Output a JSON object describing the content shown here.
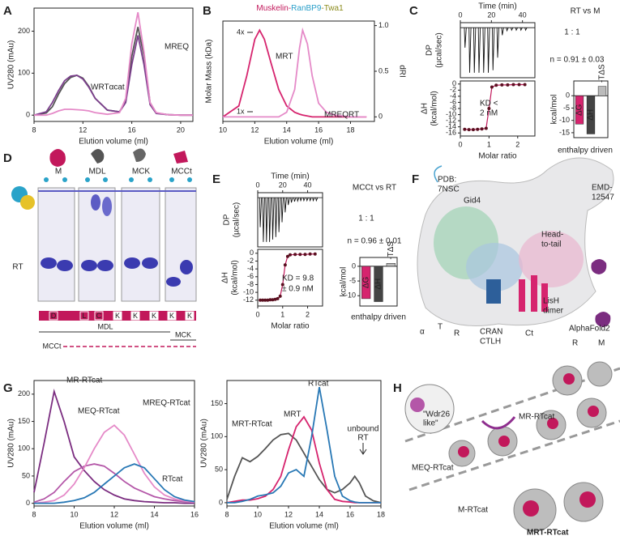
{
  "panels": [
    "A",
    "B",
    "C",
    "D",
    "E",
    "F",
    "G",
    "H"
  ],
  "chart_data": [
    {
      "type": "line",
      "xlabel": "Elution volume (ml)",
      "ylabel": "UV280 (mAu)",
      "xlim": [
        8,
        21
      ],
      "ylim": [
        -15,
        255
      ],
      "xticks": [
        8,
        12,
        16,
        20
      ],
      "yticks": [
        0,
        100,
        200
      ],
      "x": [
        8,
        9,
        9.5,
        10,
        10.5,
        11,
        11.5,
        12,
        12.5,
        13,
        14,
        15,
        15.5,
        16,
        16.5,
        17,
        17.5,
        18,
        19,
        20,
        21
      ],
      "series": [
        {
          "color": "#555555",
          "values": [
            0,
            5,
            20,
            50,
            75,
            90,
            95,
            88,
            68,
            40,
            12,
            8,
            35,
            140,
            210,
            140,
            30,
            5,
            1,
            0,
            0
          ]
        },
        {
          "name": "WRTαcat",
          "color": "#7b3f8c",
          "values": [
            0,
            8,
            30,
            58,
            82,
            93,
            95,
            86,
            66,
            40,
            12,
            8,
            30,
            120,
            190,
            120,
            25,
            4,
            1,
            0,
            0
          ]
        },
        {
          "name": "MREQ",
          "color": "#e58ac8",
          "values": [
            0,
            0,
            4,
            10,
            14,
            14,
            13,
            12,
            10,
            6,
            2,
            6,
            40,
            170,
            245,
            150,
            30,
            6,
            1,
            0,
            0
          ]
        }
      ]
    },
    {
      "type": "line",
      "title_parts": [
        "Muskelin-",
        "RanBP9",
        "-Twa1"
      ],
      "title_colors": [
        "#c2185b",
        "#2a9fc9",
        "#8a8a1a"
      ],
      "xlabel": "Elution volume (ml)",
      "ylabel": "Molar Mass (kDa)",
      "y2label": "dRI",
      "mass_labels": [
        "4x",
        "1x"
      ],
      "xlim": [
        10,
        19.5
      ],
      "xticks": [
        10,
        12,
        14,
        16,
        18
      ],
      "y2lim": [
        -0.05,
        1.05
      ],
      "y2ticks": [
        0,
        0.5,
        {
          "value": 1,
          "label": "1.0"
        }
      ],
      "x": [
        10,
        11,
        11.5,
        12,
        12.3,
        12.6,
        13,
        13.5,
        14,
        14.5,
        14.8,
        15,
        15.3,
        15.6,
        16,
        16.5,
        17,
        18,
        19
      ],
      "series": [
        {
          "name": "MRT",
          "color": "#d6246e",
          "axis": "y2",
          "values": [
            0,
            0.12,
            0.45,
            0.85,
            0.95,
            0.85,
            0.6,
            0.3,
            0.12,
            0.05,
            0.03,
            0.02,
            0.01,
            0,
            0,
            0,
            0,
            0,
            0
          ]
        },
        {
          "name": "MREQRT",
          "color": "#e58ac8",
          "axis": "y2",
          "values": [
            0,
            0,
            0,
            0,
            0,
            0,
            0,
            0,
            0.05,
            0.3,
            0.75,
            0.95,
            0.8,
            0.45,
            0.15,
            0.05,
            0.02,
            0,
            0
          ]
        }
      ]
    },
    {
      "type": "spikes",
      "xlabel": "Time (min)",
      "ylabel": [
        "DP",
        "(µcal/sec)"
      ],
      "xlim": [
        0,
        48
      ],
      "xticks": [
        0,
        20,
        40
      ],
      "ylim": [
        -10,
        1
      ],
      "color": "#111111",
      "x": [
        3,
        6,
        9,
        12,
        15,
        18,
        21,
        24,
        27,
        30,
        33,
        36,
        39,
        42
      ],
      "values": [
        -4,
        -9,
        -9,
        -9,
        -9,
        -9,
        -8.5,
        -6,
        -1.5,
        -0.6,
        -0.5,
        -0.5,
        -0.5,
        -0.5
      ]
    },
    {
      "type": "line",
      "markers": true,
      "xlabel": "Molar ratio",
      "ylabel": [
        "ΔH",
        "(kcal/mol)"
      ],
      "xlim": [
        0,
        2.6
      ],
      "xticks": [
        0,
        1,
        2
      ],
      "ylim": [
        -17,
        1
      ],
      "yticks": [
        0,
        -2,
        -4,
        -6,
        -8,
        -10,
        -12,
        -14,
        -16
      ],
      "annotations": [
        "KD <",
        "2 nM"
      ],
      "x": [
        0.15,
        0.3,
        0.45,
        0.6,
        0.75,
        0.9,
        1.0,
        1.1,
        1.25,
        1.45,
        1.65,
        1.85,
        2.05,
        2.25
      ],
      "series": [
        {
          "color": "#c2185b",
          "values": [
            -14.8,
            -14.9,
            -14.9,
            -14.8,
            -14.7,
            -14.5,
            -8,
            -1,
            -0.4,
            -0.3,
            -0.3,
            -0.2,
            -0.2,
            -0.2
          ]
        }
      ]
    },
    {
      "type": "bar",
      "ylabel": "kcal/mol",
      "ylim": [
        -17,
        6
      ],
      "yticks": [
        0,
        -5,
        -10,
        -15
      ],
      "categories": [
        "ΔG",
        "ΔH",
        "-TΔS"
      ],
      "values": [
        -11.5,
        -15.5,
        3.8
      ],
      "colors": [
        "#d6246e",
        "#444444",
        "#bbbbbb"
      ],
      "annotations": [
        "RT vs M",
        "1 : 1",
        "n = 0.91 ± 0.03",
        "enthalpy driven"
      ]
    },
    {
      "type": "spikes",
      "xlabel": "Time (min)",
      "ylabel": [
        "DP",
        "(µcal/sec)"
      ],
      "xlim": [
        0,
        52
      ],
      "xticks": [
        0,
        20,
        40
      ],
      "ylim": [
        -10,
        1
      ],
      "color": "#111111",
      "x": [
        2,
        4.5,
        7,
        9.5,
        12,
        14.5,
        17,
        19.5,
        22,
        24.5,
        27,
        29.5,
        32,
        34.5,
        37,
        39.5,
        42,
        44.5,
        47
      ],
      "values": [
        -6,
        -9,
        -9,
        -9,
        -8.5,
        -8,
        -7,
        -5,
        -3,
        -1.5,
        -1,
        -0.8,
        -0.7,
        -0.6,
        -0.6,
        -0.6,
        -0.6,
        -0.6,
        -0.6
      ]
    },
    {
      "type": "line",
      "markers": true,
      "xlabel": "Molar ratio",
      "ylabel": [
        "ΔH",
        "(kcal/mol)"
      ],
      "xlim": [
        0,
        2.6
      ],
      "xticks": [
        0,
        1,
        2
      ],
      "ylim": [
        -13.5,
        1
      ],
      "yticks": [
        0,
        -2,
        -4,
        -6,
        -8,
        -10,
        -12
      ],
      "annotations": [
        "KD = 9.8",
        "± 0.9 nM"
      ],
      "x": [
        0.1,
        0.2,
        0.3,
        0.4,
        0.5,
        0.6,
        0.7,
        0.8,
        0.9,
        1.0,
        1.1,
        1.2,
        1.3,
        1.5,
        1.7,
        1.9,
        2.1,
        2.3
      ],
      "series": [
        {
          "color": "#c2185b",
          "values": [
            -12,
            -12,
            -12,
            -12,
            -11.9,
            -11.9,
            -11.8,
            -11.6,
            -11,
            -8,
            -3,
            -0.8,
            -0.4,
            -0.3,
            -0.3,
            -0.3,
            -0.2,
            -0.2
          ]
        }
      ]
    },
    {
      "type": "bar",
      "ylabel": "kcal/mol",
      "ylim": [
        -13.5,
        3
      ],
      "yticks": [
        0,
        -5,
        -10
      ],
      "categories": [
        "ΔG",
        "ΔH",
        "-TΔS"
      ],
      "values": [
        -11,
        -12,
        1
      ],
      "colors": [
        "#d6246e",
        "#444444",
        "#bbbbbb"
      ],
      "annotations": [
        "MCCt vs RT",
        "1 : 1",
        "n = 0.96 ± 0.01",
        "enthalpy driven"
      ]
    },
    {
      "type": "line",
      "xlabel": "Elution volume (ml)",
      "ylabel": "UV280 (mAu)",
      "xlim": [
        8,
        16
      ],
      "xticks": [
        8,
        10,
        12,
        14,
        16
      ],
      "ylim": [
        -5,
        225
      ],
      "yticks": [
        0,
        50,
        100,
        150,
        200
      ],
      "x": [
        8,
        8.5,
        9,
        9.5,
        10,
        10.5,
        11,
        11.5,
        12,
        12.5,
        13,
        13.5,
        14,
        14.5,
        15,
        15.5,
        16
      ],
      "series": [
        {
          "name": "MR-RTcat",
          "color": "#7b2d80",
          "values": [
            20,
            110,
            205,
            150,
            85,
            60,
            40,
            25,
            15,
            8,
            5,
            3,
            2,
            1,
            1,
            0,
            0
          ]
        },
        {
          "name": "MEQ-RTcat",
          "color": "#b457a8",
          "values": [
            2,
            8,
            20,
            40,
            58,
            68,
            72,
            68,
            55,
            40,
            28,
            20,
            12,
            8,
            5,
            3,
            2
          ]
        },
        {
          "name": "MREQ-RTcat",
          "color": "#e58ac8",
          "values": [
            0,
            2,
            5,
            15,
            35,
            65,
            100,
            130,
            143,
            125,
            90,
            55,
            30,
            15,
            8,
            4,
            2
          ]
        },
        {
          "name": "RTcat",
          "color": "#2878b5",
          "values": [
            0,
            0,
            0,
            2,
            5,
            10,
            20,
            35,
            50,
            65,
            72,
            65,
            45,
            25,
            12,
            6,
            3
          ]
        }
      ]
    },
    {
      "type": "line",
      "xlabel": "Elution volume (ml)",
      "ylabel": "UV280 (mAu)",
      "xlim": [
        8,
        18
      ],
      "xticks": [
        8,
        10,
        12,
        14,
        16,
        18
      ],
      "ylim": [
        -5,
        185
      ],
      "yticks": [
        0,
        50,
        100,
        150
      ],
      "annotations": [
        "unbound",
        "RT"
      ],
      "x": [
        8,
        8.5,
        9,
        9.5,
        10,
        10.5,
        11,
        11.5,
        12,
        12.5,
        13,
        13.5,
        14,
        14.5,
        15,
        15.5,
        16,
        16.3,
        16.6,
        17,
        17.5,
        18
      ],
      "series": [
        {
          "name": "MRT-RTcat",
          "color": "#555555",
          "values": [
            5,
            40,
            68,
            62,
            70,
            82,
            95,
            103,
            105,
            95,
            75,
            55,
            35,
            20,
            15,
            20,
            30,
            40,
            30,
            10,
            3,
            0
          ]
        },
        {
          "name": "MRT",
          "color": "#d6246e",
          "values": [
            0,
            2,
            4,
            4,
            6,
            10,
            20,
            40,
            80,
            115,
            130,
            110,
            60,
            20,
            5,
            2,
            1,
            0,
            0,
            0,
            0,
            0
          ]
        },
        {
          "name": "RTcat",
          "color": "#2878b5",
          "values": [
            0,
            0,
            2,
            5,
            10,
            12,
            15,
            25,
            45,
            50,
            40,
            100,
            175,
            110,
            40,
            10,
            3,
            1,
            0,
            0,
            0,
            0
          ]
        }
      ]
    }
  ],
  "gel": {
    "lanes": [
      "M",
      "MDL",
      "MCK",
      "MCCt"
    ],
    "row_label": "RT",
    "domains": [
      "D",
      "L",
      "C",
      "K",
      "K",
      "K",
      "K",
      "K"
    ],
    "constructs": [
      "MDL",
      "MCK",
      "MCCt"
    ]
  },
  "structure": {
    "labels": [
      "PDB:",
      "7NSC",
      "Gid4",
      "EMD-",
      "12547",
      "Head-",
      "to-tail",
      "LisH",
      "dimer",
      "α",
      "T",
      "R",
      "CRAN",
      "CTLH",
      "Ct",
      "AlphaFold2",
      "R",
      "M"
    ]
  },
  "model": {
    "labels": [
      "\"Wdr26",
      "like\"",
      "MR-RTcat",
      "MEQ-RTcat",
      "M-RTcat",
      "MRT-RTcat"
    ]
  }
}
